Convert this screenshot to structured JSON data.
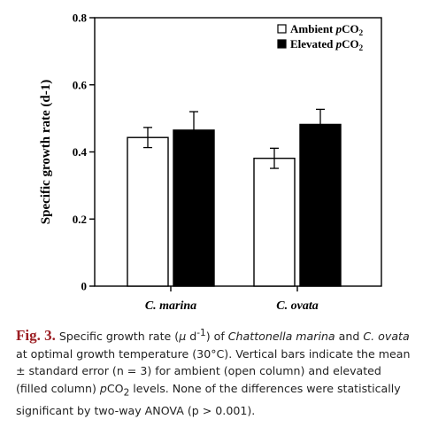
{
  "chart_data": {
    "type": "bar",
    "categories": [
      "C. marina",
      "C. ovata"
    ],
    "series": [
      {
        "name": "Ambient pCO2",
        "values": [
          0.443,
          0.381
        ],
        "errors": [
          0.03,
          0.03
        ],
        "fill": "#ffffff"
      },
      {
        "name": "Elevated pCO2",
        "values": [
          0.465,
          0.482
        ],
        "errors": [
          0.055,
          0.045
        ],
        "fill": "#000000"
      }
    ],
    "ylabel": "Specific growth rate (d-1)",
    "ylim": [
      0,
      0.8
    ],
    "yticks": [
      "0",
      "0.2",
      "0.4",
      "0.6",
      "0.8"
    ],
    "grid": false,
    "legend_position": "top-right",
    "legend": [
      {
        "base": "Ambient ",
        "italic": "p",
        "rest": "CO",
        "sub": "2"
      },
      {
        "base": "Elevated ",
        "italic": "p",
        "rest": "CO",
        "sub": "2"
      }
    ]
  },
  "caption": {
    "label": "Fig. 3.",
    "p1": " Specific growth rate (",
    "p1i": "μ",
    "p2": " d",
    "p2sup": "-1",
    "p3": ") of ",
    "p3i": "Chattonella marina",
    "p4": " and ",
    "p4i": "C. ovata",
    "p5": " at optimal growth temperature (30°C). Vertical bars indicate the mean ± standard error (n = 3) for ambient (open column) and elevated (filled column) ",
    "p5i": "p",
    "p6": "CO",
    "p6sub": "2",
    "p7": " levels. None of the differences were statistically significant by two-way ANOVA (p > 0.001)."
  }
}
